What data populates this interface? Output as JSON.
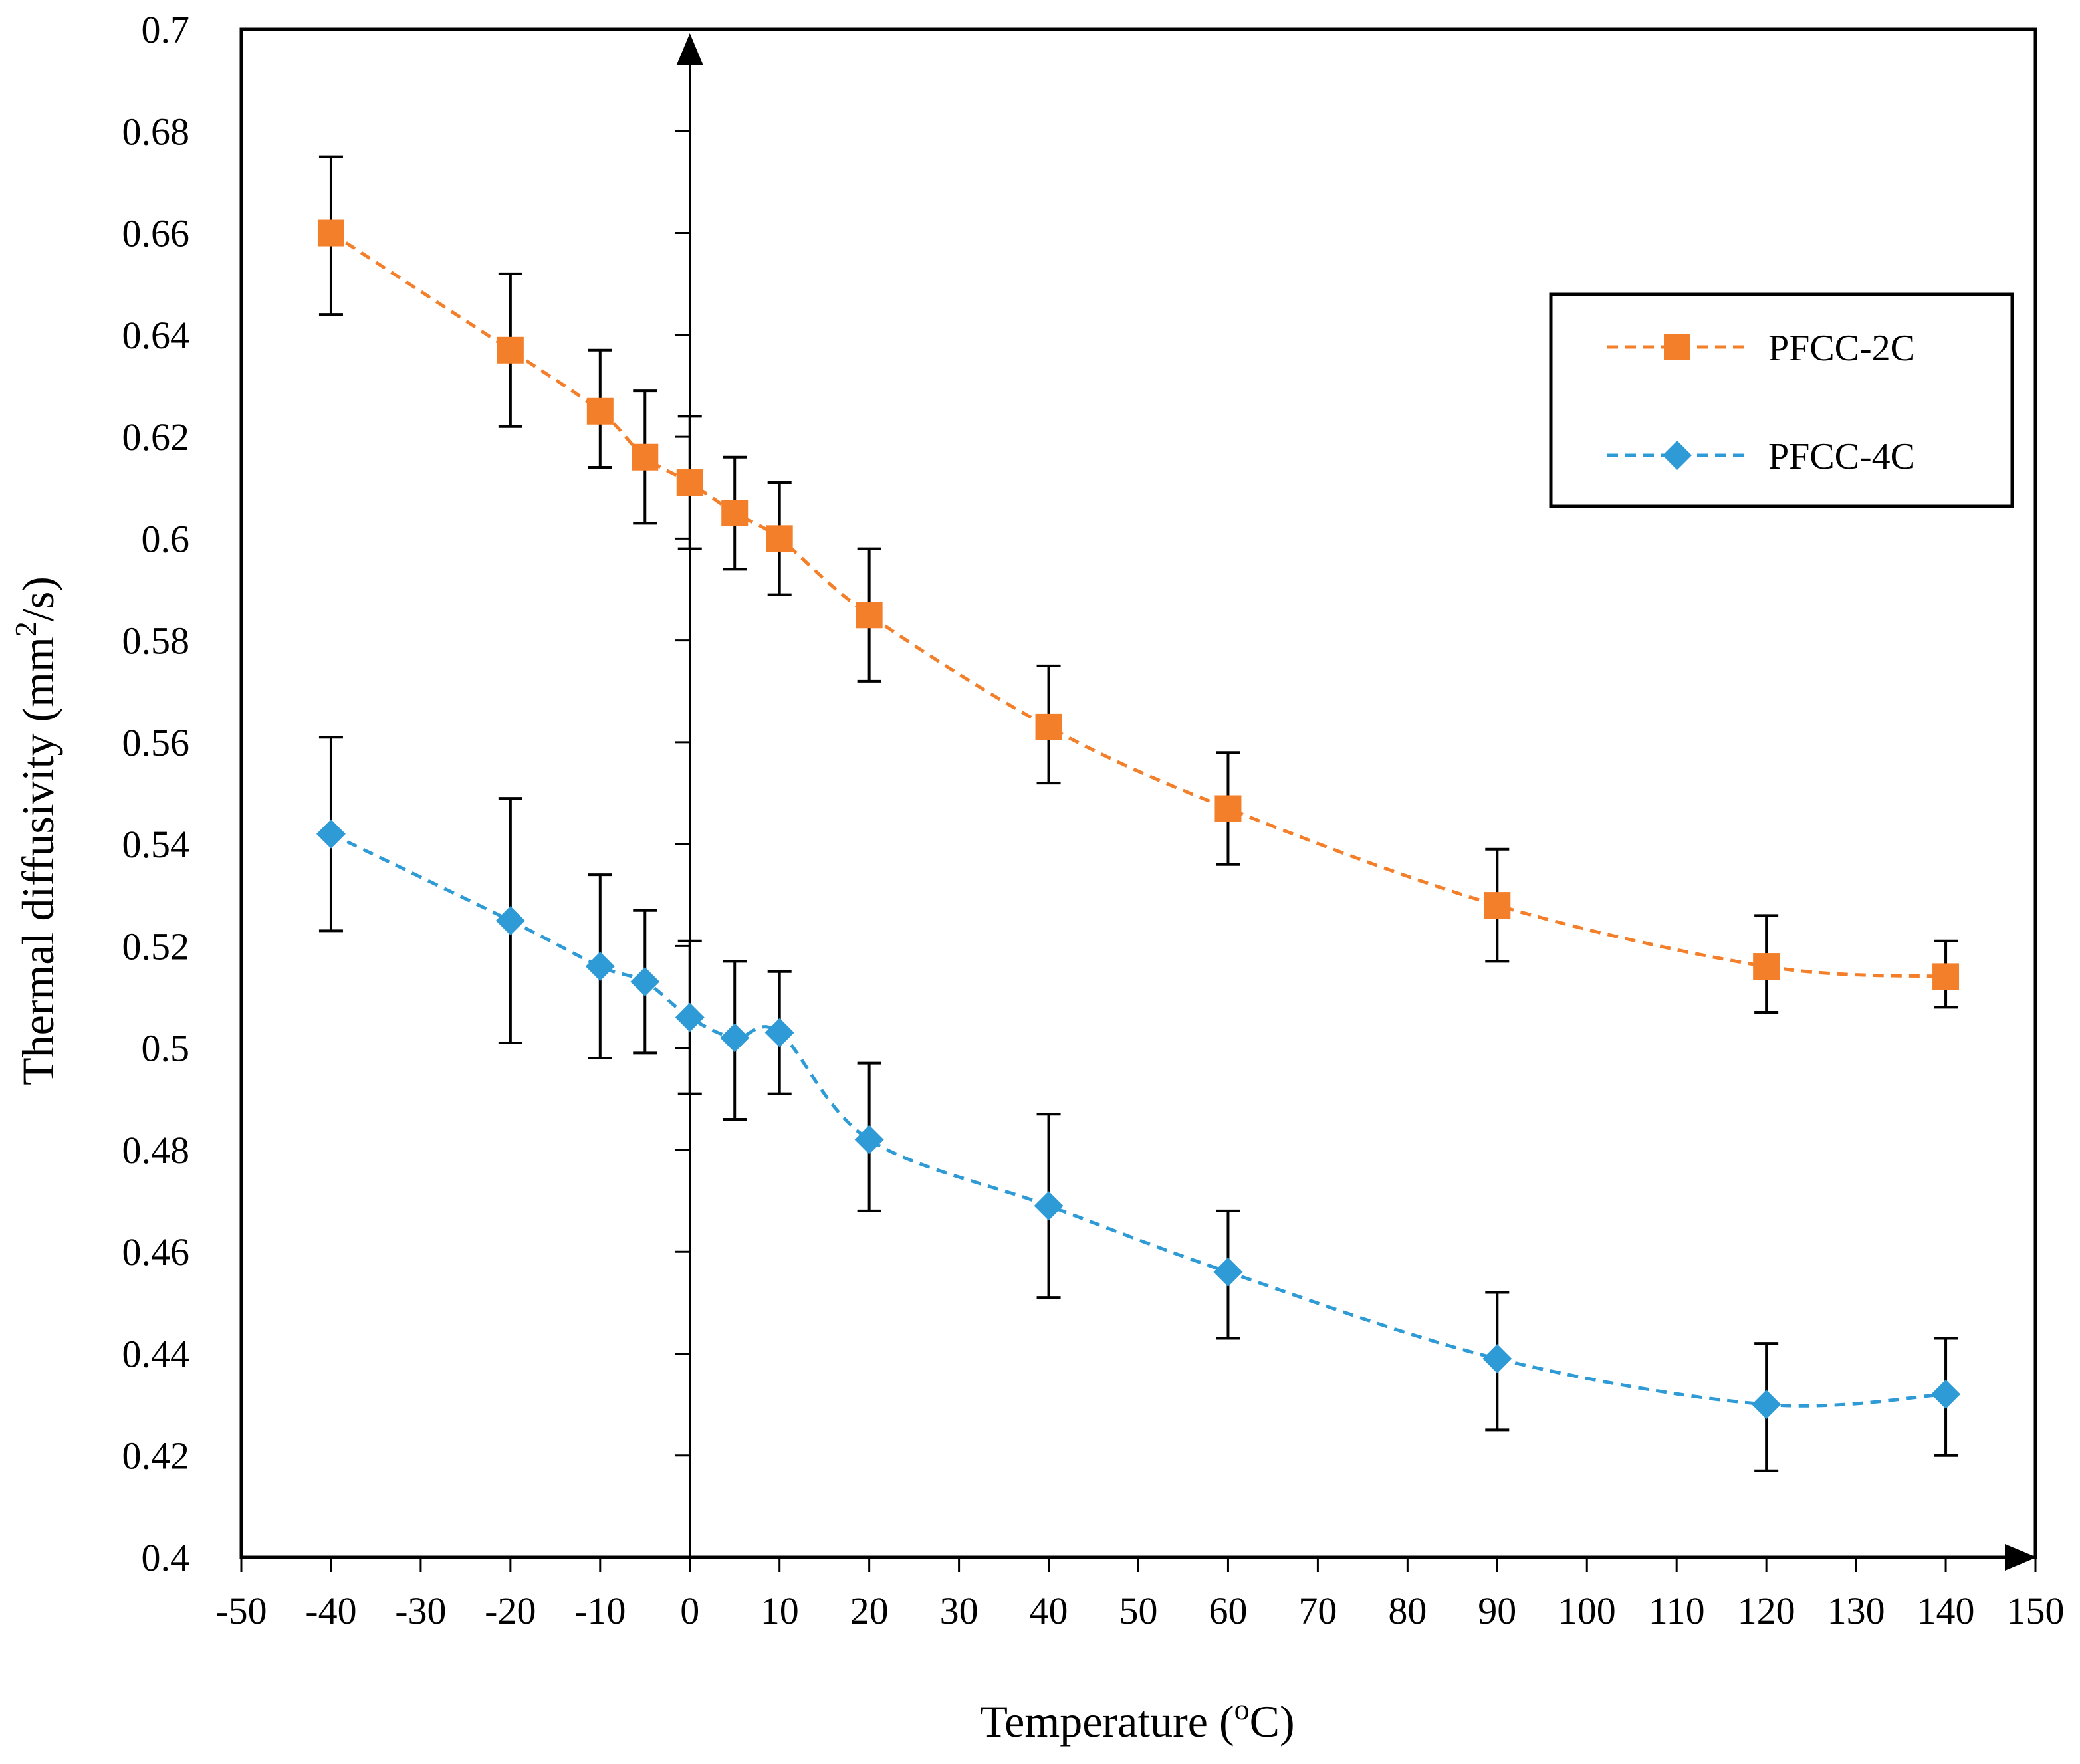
{
  "chart_data": {
    "type": "line",
    "title": "",
    "xlabel": "Temperature",
    "xlabel_unit_open": " (",
    "xlabel_unit_sup": "o",
    "xlabel_unit_close": "C)",
    "ylabel": "Thermal diffusivity (mm",
    "ylabel_sup": "2",
    "ylabel_close": "/s)",
    "categories": [
      "-50",
      "-40",
      "-30",
      "-20",
      "-10",
      "0",
      "10",
      "20",
      "30",
      "40",
      "50",
      "60",
      "70",
      "80",
      "90",
      "100",
      "110",
      "120",
      "130",
      "140",
      "150"
    ],
    "yticks": [
      "0.4",
      "0.42",
      "0.44",
      "0.46",
      "0.48",
      "0.5",
      "0.52",
      "0.54",
      "0.56",
      "0.58",
      "0.6",
      "0.62",
      "0.64",
      "0.66",
      "0.68",
      "0.7"
    ],
    "ylim": [
      0.4,
      0.7
    ],
    "grid": false,
    "legend_position": "top-right",
    "series": [
      {
        "name": "PFCC-2C",
        "color": "#F47F2A",
        "marker": "square",
        "x": [
          "-40",
          "-20",
          "-10",
          "-5",
          "0",
          "5",
          "10",
          "20",
          "40",
          "60",
          "90",
          "120",
          "140"
        ],
        "values": [
          0.66,
          0.637,
          0.625,
          0.616,
          0.611,
          0.605,
          0.6,
          0.585,
          0.563,
          0.547,
          0.528,
          0.516,
          0.514
        ],
        "err_low": [
          0.644,
          0.622,
          0.614,
          0.603,
          0.598,
          0.594,
          0.589,
          0.572,
          0.552,
          0.536,
          0.517,
          0.507,
          0.508
        ],
        "err_high": [
          0.675,
          0.652,
          0.637,
          0.629,
          0.624,
          0.616,
          0.611,
          0.598,
          0.575,
          0.558,
          0.539,
          0.526,
          0.521
        ]
      },
      {
        "name": "PFCC-4C",
        "color": "#2E9BD6",
        "marker": "diamond",
        "x": [
          "-40",
          "-20",
          "-10",
          "-5",
          "0",
          "5",
          "10",
          "20",
          "40",
          "60",
          "90",
          "120",
          "140"
        ],
        "values": [
          0.542,
          0.525,
          0.516,
          0.513,
          0.506,
          0.502,
          0.503,
          0.482,
          0.469,
          0.456,
          0.439,
          0.43,
          0.432
        ],
        "err_low": [
          0.523,
          0.501,
          0.498,
          0.499,
          0.491,
          0.486,
          0.491,
          0.468,
          0.451,
          0.443,
          0.425,
          0.417,
          0.42
        ],
        "err_high": [
          0.561,
          0.549,
          0.534,
          0.527,
          0.521,
          0.517,
          0.515,
          0.497,
          0.487,
          0.468,
          0.452,
          0.442,
          0.443
        ]
      }
    ]
  }
}
